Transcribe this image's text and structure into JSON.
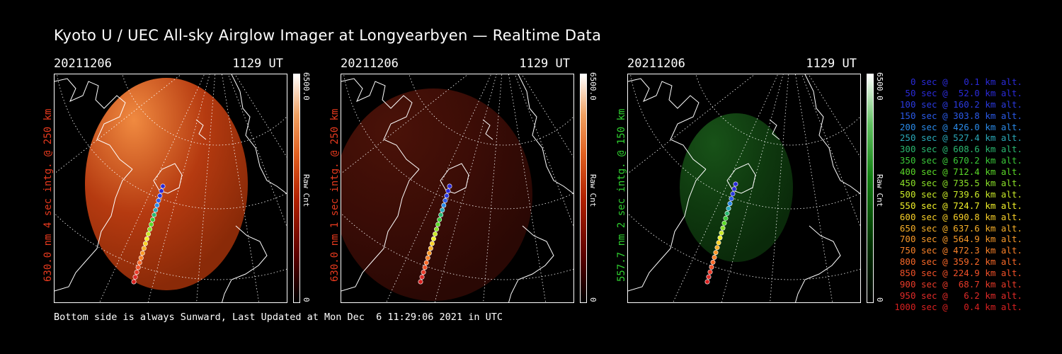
{
  "title": "Kyoto U / UEC All-sky Airglow Imager at Longyearbyen — Realtime Data",
  "footer": "Bottom side is always Sunward, Last Updated at Mon Dec  6 11:29:06 2021 in UTC",
  "panels": [
    {
      "date": "20211206",
      "time": "1129 UT",
      "label": "630.0 nm 4 sec intg. @ 250 km",
      "label_color": "#e83a1e",
      "cbar_max": "6500.0",
      "cbar_min": "0",
      "cbar_name": "Raw Cnt",
      "colormap": "red"
    },
    {
      "date": "20211206",
      "time": "1129 UT",
      "label": "630.0 nm 1 sec intg. @ 250 km",
      "label_color": "#e83a1e",
      "cbar_max": "6500.0",
      "cbar_min": "0",
      "cbar_name": "Raw Cnt",
      "colormap": "red"
    },
    {
      "date": "20211206",
      "time": "1129 UT",
      "label": "557.7 nm 2 sec intg. @ 150 km",
      "label_color": "#2fd12f",
      "cbar_max": "6500.0",
      "cbar_min": "0",
      "cbar_name": "Raw Cnt",
      "colormap": "green"
    }
  ],
  "legend": [
    {
      "text": "0 sec @   0.1 km alt.",
      "color": "#2a2ad8"
    },
    {
      "text": "50 sec @  52.0 km alt.",
      "color": "#2a2ad8"
    },
    {
      "text": "100 sec @ 160.2 km alt.",
      "color": "#2a3ae0"
    },
    {
      "text": "150 sec @ 303.8 km alt.",
      "color": "#2a5ae8"
    },
    {
      "text": "200 sec @ 426.0 km alt.",
      "color": "#2a8ae8"
    },
    {
      "text": "250 sec @ 527.4 km alt.",
      "color": "#2aa8b8"
    },
    {
      "text": "300 sec @ 608.6 km alt.",
      "color": "#2ab870"
    },
    {
      "text": "350 sec @ 670.2 km alt.",
      "color": "#3ac838"
    },
    {
      "text": "400 sec @ 712.4 km alt.",
      "color": "#5ad828"
    },
    {
      "text": "450 sec @ 735.5 km alt.",
      "color": "#8ae028"
    },
    {
      "text": "500 sec @ 739.6 km alt.",
      "color": "#c8e828"
    },
    {
      "text": "550 sec @ 724.7 km alt.",
      "color": "#f0f028"
    },
    {
      "text": "600 sec @ 690.8 km alt.",
      "color": "#f8d028"
    },
    {
      "text": "650 sec @ 637.6 km alt.",
      "color": "#f8b028"
    },
    {
      "text": "700 sec @ 564.9 km alt.",
      "color": "#f89828"
    },
    {
      "text": "750 sec @ 472.3 km alt.",
      "color": "#f88028"
    },
    {
      "text": "800 sec @ 359.2 km alt.",
      "color": "#f86828"
    },
    {
      "text": "850 sec @ 224.9 km alt.",
      "color": "#f05028"
    },
    {
      "text": "900 sec @  68.7 km alt.",
      "color": "#e83a28"
    },
    {
      "text": "950 sec @   6.2 km alt.",
      "color": "#e02a28"
    },
    {
      "text": "1000 sec @   0.4 km alt.",
      "color": "#d82020"
    }
  ]
}
